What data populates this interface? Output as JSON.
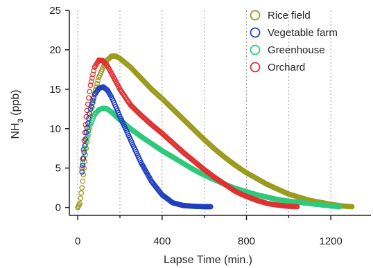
{
  "chart_data": {
    "type": "scatter",
    "xlabel": "Lapse Time (min.)",
    "ylabel_main": "NH",
    "ylabel_sub": "3",
    "ylabel_unit": " (ppb)",
    "xlim": [
      -40,
      1390
    ],
    "ylim": [
      -1,
      25
    ],
    "xticks": [
      0,
      400,
      800,
      1200
    ],
    "yticks": [
      0,
      5,
      10,
      15,
      20,
      25
    ],
    "vgrid": [
      0,
      200,
      400,
      600,
      800,
      1000,
      1200
    ],
    "grid_style": "vertical dotted",
    "legend_position": "top-right",
    "series": [
      {
        "name": "Rice field",
        "color": "#9a9a1c",
        "x": [
          0,
          10,
          20,
          30,
          40,
          60,
          80,
          100,
          120,
          140,
          160,
          180,
          200,
          250,
          300,
          350,
          400,
          450,
          500,
          550,
          600,
          650,
          700,
          750,
          800,
          900,
          1000,
          1100,
          1200,
          1250,
          1300
        ],
        "y": [
          0,
          0.5,
          2.5,
          5,
          7.5,
          11.5,
          14.5,
          16.5,
          17.8,
          18.7,
          19.2,
          19.2,
          18.9,
          17.8,
          16.4,
          15.0,
          13.8,
          12.5,
          11.2,
          9.9,
          8.6,
          7.4,
          6.3,
          5.3,
          4.4,
          2.9,
          1.7,
          0.9,
          0.4,
          0.2,
          0.1
        ]
      },
      {
        "name": "Vegetable farm",
        "color": "#1f3fbf",
        "x": [
          20,
          30,
          40,
          60,
          80,
          100,
          120,
          140,
          160,
          180,
          200,
          230,
          260,
          300,
          350,
          400,
          450,
          500,
          550,
          600,
          630
        ],
        "y": [
          4.5,
          7,
          9.5,
          12.5,
          14.3,
          15.1,
          15.3,
          14.9,
          14.0,
          12.8,
          11.5,
          9.8,
          8.0,
          5.7,
          3.3,
          1.6,
          0.6,
          0.25,
          0.15,
          0.1,
          0.1
        ]
      },
      {
        "name": "Greenhouse",
        "color": "#2ec97a",
        "x": [
          20,
          30,
          40,
          60,
          80,
          100,
          120,
          140,
          160,
          180,
          200,
          250,
          300,
          350,
          400,
          450,
          500,
          550,
          600,
          650,
          700,
          750,
          800,
          850,
          900,
          950,
          1000,
          1100,
          1200,
          1240
        ],
        "y": [
          5,
          7,
          8.5,
          10.5,
          11.8,
          12.4,
          12.6,
          12.5,
          12.1,
          11.6,
          11.1,
          10.0,
          9.0,
          8.1,
          7.2,
          6.4,
          5.6,
          4.8,
          4.1,
          3.5,
          2.9,
          2.4,
          2.0,
          1.6,
          1.3,
          1.0,
          0.8,
          0.5,
          0.2,
          0.1
        ]
      },
      {
        "name": "Orchard",
        "color": "#e03030",
        "x": [
          20,
          30,
          40,
          60,
          80,
          100,
          120,
          140,
          160,
          180,
          200,
          250,
          300,
          350,
          400,
          450,
          500,
          550,
          600,
          650,
          700,
          750,
          800,
          850,
          900,
          950,
          1000,
          1040
        ],
        "y": [
          5,
          8.5,
          11.5,
          15.5,
          17.8,
          18.7,
          18.6,
          18.0,
          17.0,
          16.0,
          15.0,
          13.0,
          11.7,
          10.5,
          9.4,
          8.2,
          7.0,
          5.9,
          4.8,
          3.8,
          2.9,
          2.0,
          1.4,
          0.9,
          0.5,
          0.3,
          0.15,
          0.1
        ]
      }
    ]
  }
}
